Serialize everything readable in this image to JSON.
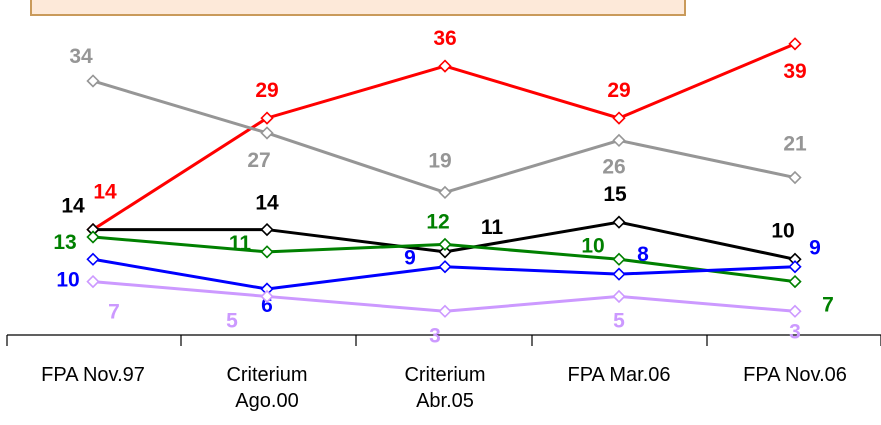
{
  "chart_data": {
    "type": "line",
    "categories": [
      "FPA Nov.97",
      "Criterium Ago.00",
      "Criterium Abr.05",
      "FPA Mar.06",
      "FPA Nov.06"
    ],
    "category_lines": [
      [
        "FPA Nov.97"
      ],
      [
        "Criterium",
        "Ago.00"
      ],
      [
        "Criterium",
        "Abr.05"
      ],
      [
        "FPA Mar.06"
      ],
      [
        "FPA Nov.06"
      ]
    ],
    "series": [
      {
        "color": "#ff0000",
        "values": [
          14,
          29,
          36,
          29,
          39
        ]
      },
      {
        "color": "#969696",
        "values": [
          34,
          27,
          19,
          26,
          21
        ]
      },
      {
        "color": "#000000",
        "values": [
          14,
          14,
          11,
          15,
          10
        ]
      },
      {
        "color": "#008000",
        "values": [
          13,
          11,
          12,
          10,
          7
        ]
      },
      {
        "color": "#0000ff",
        "values": [
          10,
          6,
          9,
          8,
          9
        ]
      },
      {
        "color": "#cc99ff",
        "values": [
          7,
          5,
          3,
          5,
          3
        ]
      }
    ],
    "title": "",
    "xlabel": "",
    "ylabel": "",
    "grid": false,
    "legend": "top"
  }
}
